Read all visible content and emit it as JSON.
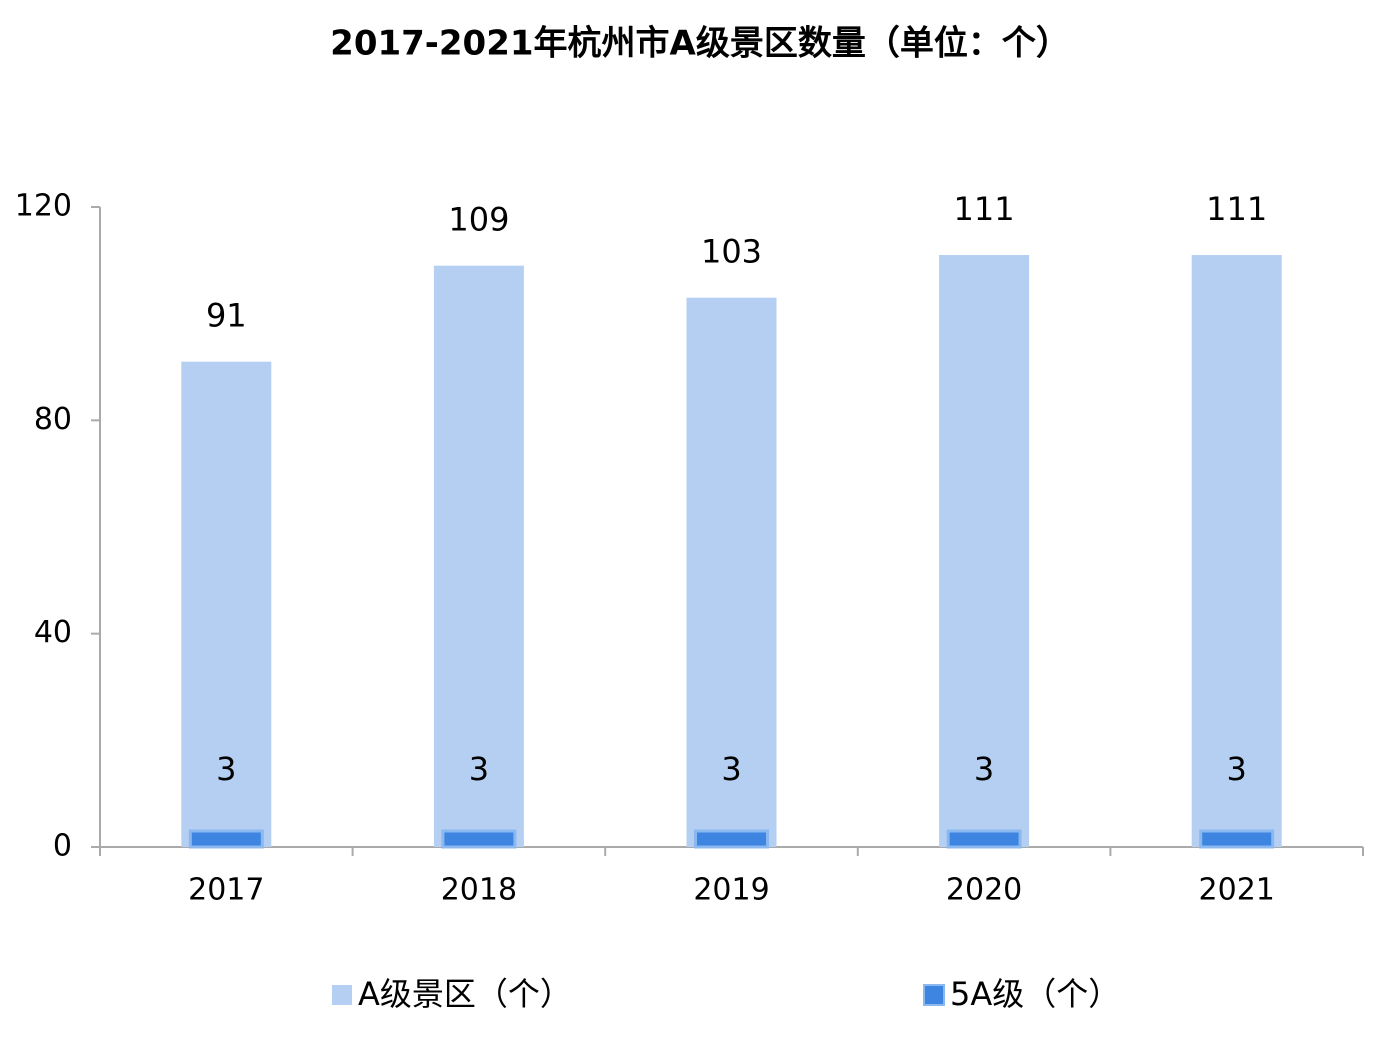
{
  "chart_data": {
    "type": "bar",
    "title": "2017-2021年杭州市A级景区数量（单位：个）",
    "categories": [
      "2017",
      "2018",
      "2019",
      "2020",
      "2021"
    ],
    "series": [
      {
        "name": "A级景区（个）",
        "color": "#b4cff2",
        "values": [
          91,
          109,
          103,
          111,
          111
        ]
      },
      {
        "name": "5A级（个）",
        "color": "#3d85e0",
        "values": [
          3,
          3,
          3,
          3,
          3
        ]
      }
    ],
    "ylim": [
      0,
      120
    ],
    "yticks": [
      0,
      40,
      80,
      120
    ],
    "legend": "bottom"
  }
}
